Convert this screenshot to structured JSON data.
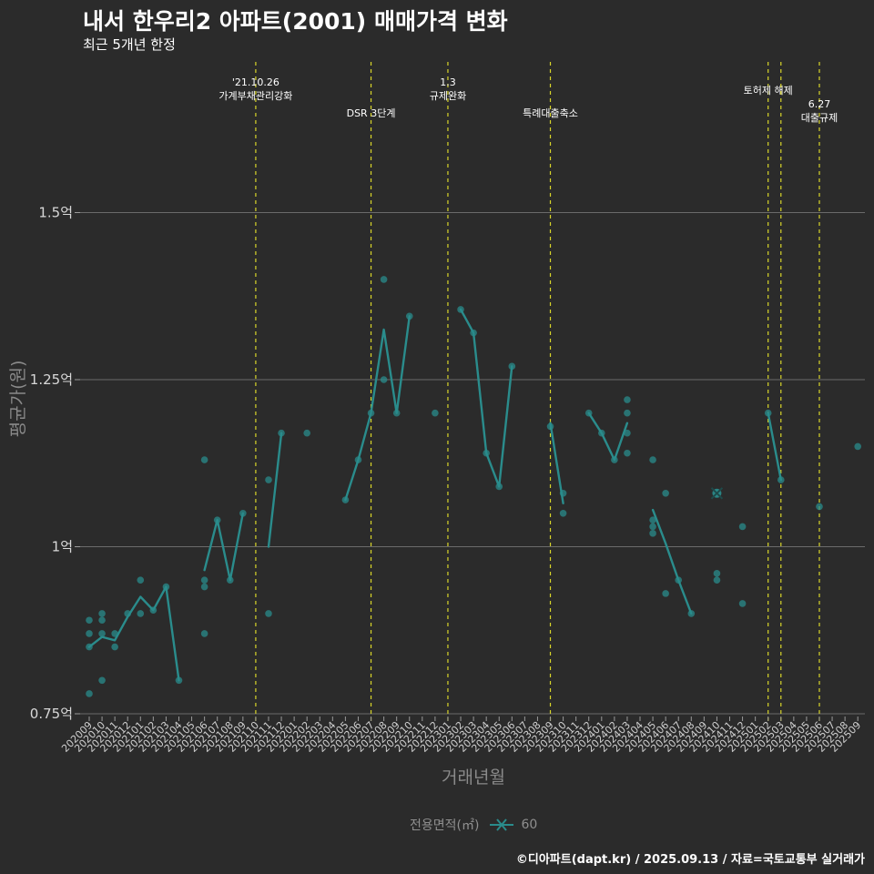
{
  "chart_data": {
    "type": "line",
    "title": "내서 한우리2 아파트(2001) 매매가격 변화",
    "subtitle": "최근 5개년 한정",
    "xlabel": "거래년월",
    "ylabel": "평균가(원)",
    "ylim": [
      0.73,
      1.75
    ],
    "y_ticks": [
      {
        "value": 0.75,
        "label": "0.75억"
      },
      {
        "value": 1.0,
        "label": "1억"
      },
      {
        "value": 1.25,
        "label": "1.25억"
      },
      {
        "value": 1.5,
        "label": "1.5억"
      }
    ],
    "categories": [
      "202009",
      "202010",
      "202011",
      "202012",
      "202101",
      "202102",
      "202103",
      "202104",
      "202105",
      "202106",
      "202107",
      "202108",
      "202109",
      "202110",
      "202111",
      "202112",
      "202201",
      "202202",
      "202203",
      "202204",
      "202205",
      "202206",
      "202207",
      "202208",
      "202209",
      "202210",
      "202211",
      "202212",
      "202301",
      "202302",
      "202303",
      "202304",
      "202305",
      "202306",
      "202307",
      "202308",
      "202309",
      "202310",
      "202311",
      "202312",
      "202401",
      "202402",
      "202403",
      "202404",
      "202405",
      "202406",
      "202407",
      "202408",
      "202409",
      "202410",
      "202411",
      "202412",
      "202501",
      "202502",
      "202503",
      "202504",
      "202505",
      "202506",
      "202507",
      "202508",
      "202509"
    ],
    "series": [
      {
        "name": "60",
        "color": "#2a8c8c",
        "segments": [
          [
            [
              0,
              0.85
            ],
            [
              1,
              0.865
            ],
            [
              2,
              0.86
            ],
            [
              3,
              0.895
            ],
            [
              4,
              0.925
            ],
            [
              5,
              0.905
            ],
            [
              6,
              0.94
            ],
            [
              7,
              0.8
            ]
          ],
          [
            [
              9,
              0.965
            ],
            [
              10,
              1.04
            ],
            [
              11,
              0.95
            ],
            [
              12,
              1.05
            ]
          ],
          [
            [
              14,
              1.0
            ],
            [
              15,
              1.17
            ]
          ],
          [
            [
              20,
              1.07
            ],
            [
              21,
              1.13
            ],
            [
              22,
              1.2
            ],
            [
              23,
              1.325
            ],
            [
              24,
              1.2
            ],
            [
              25,
              1.345
            ]
          ],
          [
            [
              29,
              1.355
            ],
            [
              30,
              1.32
            ],
            [
              31,
              1.14
            ],
            [
              32,
              1.09
            ],
            [
              33,
              1.27
            ]
          ],
          [
            [
              36,
              1.185
            ],
            [
              37,
              1.065
            ]
          ],
          [
            [
              39,
              1.2
            ],
            [
              40,
              1.17
            ],
            [
              41,
              1.13
            ],
            [
              42,
              1.185
            ]
          ],
          [
            [
              44,
              1.055
            ],
            [
              45,
              1.005
            ],
            [
              46,
              0.95
            ],
            [
              47,
              0.9
            ]
          ],
          [
            [
              53,
              1.2
            ],
            [
              54,
              1.1
            ]
          ]
        ],
        "points": [
          [
            0,
            0.78
          ],
          [
            0,
            0.85
          ],
          [
            0,
            0.87
          ],
          [
            0,
            0.89
          ],
          [
            1,
            0.8
          ],
          [
            1,
            0.87
          ],
          [
            1,
            0.89
          ],
          [
            1,
            0.9
          ],
          [
            2,
            0.85
          ],
          [
            2,
            0.87
          ],
          [
            3,
            0.9
          ],
          [
            4,
            0.9
          ],
          [
            4,
            0.95
          ],
          [
            5,
            0.905
          ],
          [
            6,
            0.94
          ],
          [
            7,
            0.8
          ],
          [
            9,
            0.87
          ],
          [
            9,
            0.94
          ],
          [
            9,
            0.95
          ],
          [
            9,
            1.13
          ],
          [
            10,
            1.04
          ],
          [
            11,
            0.95
          ],
          [
            12,
            1.05
          ],
          [
            14,
            0.9
          ],
          [
            14,
            1.1
          ],
          [
            15,
            1.17
          ],
          [
            17,
            1.17
          ],
          [
            20,
            1.07
          ],
          [
            21,
            1.13
          ],
          [
            22,
            1.2
          ],
          [
            23,
            1.25
          ],
          [
            23,
            1.4
          ],
          [
            24,
            1.2
          ],
          [
            25,
            1.345
          ],
          [
            27,
            1.2
          ],
          [
            29,
            1.355
          ],
          [
            30,
            1.32
          ],
          [
            31,
            1.14
          ],
          [
            32,
            1.09
          ],
          [
            33,
            1.27
          ],
          [
            36,
            1.18
          ],
          [
            37,
            1.05
          ],
          [
            37,
            1.08
          ],
          [
            39,
            1.2
          ],
          [
            40,
            1.17
          ],
          [
            41,
            1.13
          ],
          [
            42,
            1.14
          ],
          [
            42,
            1.17
          ],
          [
            42,
            1.2
          ],
          [
            42,
            1.22
          ],
          [
            44,
            1.02
          ],
          [
            44,
            1.03
          ],
          [
            44,
            1.04
          ],
          [
            44,
            1.13
          ],
          [
            45,
            0.93
          ],
          [
            45,
            1.08
          ],
          [
            46,
            0.95
          ],
          [
            47,
            0.9
          ],
          [
            49,
            0.95
          ],
          [
            49,
            0.96
          ],
          [
            49,
            1.08
          ],
          [
            51,
            0.915
          ],
          [
            51,
            1.03
          ],
          [
            53,
            1.2
          ],
          [
            54,
            1.1
          ],
          [
            57,
            1.06
          ],
          [
            60,
            1.15
          ]
        ],
        "cross_marker": [
          49,
          1.08
        ]
      }
    ],
    "events": [
      {
        "x": 13,
        "lines": [
          "'21.10.26",
          "가계부채관리강화"
        ],
        "row": 0
      },
      {
        "x": 22,
        "lines": [
          "DSR 3단계"
        ],
        "row": 2
      },
      {
        "x": 28,
        "lines": [
          "1.3",
          "규제완화"
        ],
        "row": 0
      },
      {
        "x": 36,
        "lines": [
          "특례대출축소"
        ],
        "row": 2
      },
      {
        "x": 53,
        "lines": [
          "토허제 해제"
        ],
        "row": 1
      },
      {
        "x": 54,
        "lines": [],
        "row": 0
      },
      {
        "x": 57,
        "lines": [
          "6.27",
          "대출규제"
        ],
        "row": 2
      }
    ],
    "legend": {
      "title": "전용면적(㎡)",
      "entries": [
        "60"
      ],
      "position": "bottom"
    },
    "caption": "©디아파트(dapt.kr) / 2025.09.13 / 자료=국토교통부 실거래가"
  }
}
